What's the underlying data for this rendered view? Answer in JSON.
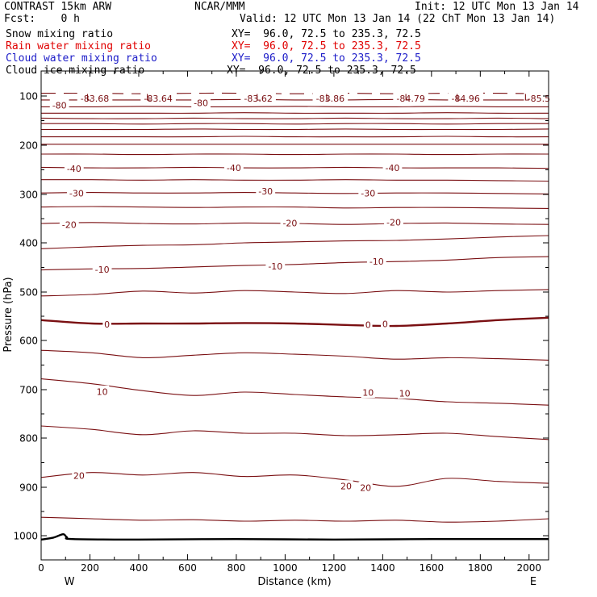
{
  "header": {
    "title": "CONTRAST 15km ARW",
    "center": "NCAR/MMM",
    "init": "Init: 12 UTC Mon 13 Jan 14",
    "fcst": "Fcst:    0 h",
    "valid": "Valid: 12 UTC Mon 13 Jan 14 (22 ChT Mon 13 Jan 14)"
  },
  "fields": [
    {
      "name": "Snow mixing ratio",
      "xy": "XY=  96.0, 72.5 to 235.3, 72.5",
      "color": "#000000"
    },
    {
      "name": "Rain water mixing ratio",
      "xy": "XY=  96.0, 72.5 to 235.3, 72.5",
      "color": "#e00000"
    },
    {
      "name": "Cloud water mixing ratio",
      "xy": "XY=  96.0, 72.5 to 235.3, 72.5",
      "color": "#1c1cc8"
    },
    {
      "name": "Cloud ice mixing ratio",
      "xy": "XY=  96.0, 72.5 to 235.3, 72.5",
      "color": "#000000"
    }
  ],
  "chart_data": {
    "type": "line",
    "xlabel": "Distance (km)",
    "ylabel": "Pressure (hPa)",
    "xlim": [
      0,
      2080
    ],
    "ylim": [
      1050,
      55
    ],
    "x_ticks": [
      0,
      200,
      400,
      600,
      800,
      1000,
      1200,
      1400,
      1600,
      1800,
      2000
    ],
    "y_ticks": [
      100,
      200,
      300,
      400,
      500,
      600,
      700,
      800,
      900,
      1000
    ],
    "x_end_labels": {
      "left": "W",
      "right": "E"
    },
    "contour_color": "#7a0f12",
    "ground_color": "#000000",
    "contours": [
      {
        "p": [
          95,
          95,
          96,
          95,
          95,
          96,
          95,
          96,
          95,
          95,
          96
        ],
        "dashed": true
      },
      {
        "p": [
          108,
          108,
          108,
          108,
          107,
          108,
          108,
          107,
          108,
          108,
          108
        ]
      },
      {
        "p": [
          122,
          122,
          121,
          122,
          122,
          121,
          122,
          122,
          121,
          122,
          122
        ]
      },
      {
        "p": [
          135,
          135,
          135,
          135,
          134,
          135,
          135,
          135,
          134,
          135,
          135
        ]
      },
      {
        "p": [
          145,
          146,
          146,
          145,
          146,
          146,
          145,
          146,
          146,
          145,
          146
        ]
      },
      {
        "p": [
          156,
          156,
          157,
          156,
          156,
          157,
          156,
          156,
          157,
          156,
          156
        ]
      },
      {
        "p": [
          168,
          168,
          168,
          167,
          168,
          168,
          167,
          168,
          168,
          168,
          167
        ]
      },
      {
        "p": [
          183,
          183,
          183,
          183,
          182,
          183,
          183,
          183,
          182,
          183,
          183
        ]
      },
      {
        "p": [
          198,
          198,
          198,
          198,
          198,
          198,
          198,
          198,
          198,
          198,
          198
        ]
      },
      {
        "p": [
          218,
          218,
          219,
          218,
          218,
          219,
          218,
          218,
          219,
          218,
          218
        ]
      },
      {
        "p": [
          245,
          246,
          246,
          245,
          246,
          246,
          245,
          246,
          246,
          246,
          247
        ]
      },
      {
        "p": [
          270,
          270,
          271,
          270,
          271,
          271,
          270,
          271,
          271,
          272,
          273
        ]
      },
      {
        "p": [
          297,
          296,
          297,
          297,
          296,
          297,
          298,
          297,
          297,
          298,
          299
        ]
      },
      {
        "p": [
          326,
          325,
          326,
          327,
          326,
          326,
          328,
          327,
          327,
          328,
          329
        ]
      },
      {
        "p": [
          360,
          358,
          360,
          361,
          359,
          360,
          362,
          360,
          359,
          361,
          362
        ]
      },
      {
        "p": [
          412,
          408,
          405,
          404,
          400,
          398,
          396,
          395,
          392,
          388,
          385
        ]
      },
      {
        "p": [
          455,
          453,
          452,
          449,
          446,
          444,
          440,
          438,
          435,
          430,
          428
        ]
      },
      {
        "p": [
          508,
          505,
          498,
          502,
          497,
          500,
          503,
          497,
          500,
          497,
          495
        ]
      },
      {
        "p": [
          558,
          565,
          565,
          565,
          564,
          565,
          568,
          570,
          565,
          558,
          553
        ],
        "bold": true
      },
      {
        "p": [
          620,
          625,
          635,
          630,
          625,
          628,
          632,
          638,
          635,
          637,
          640
        ]
      },
      {
        "p": [
          678,
          688,
          702,
          712,
          705,
          710,
          715,
          718,
          725,
          728,
          732
        ]
      },
      {
        "p": [
          775,
          782,
          793,
          785,
          790,
          790,
          795,
          793,
          790,
          797,
          803
        ]
      },
      {
        "p": [
          880,
          870,
          875,
          870,
          878,
          875,
          885,
          898,
          882,
          888,
          892
        ]
      },
      {
        "p": [
          962,
          965,
          968,
          967,
          970,
          968,
          970,
          968,
          972,
          970,
          965
        ]
      }
    ],
    "ground": {
      "x": [
        0,
        50,
        90,
        105,
        130,
        400,
        800,
        1200,
        1600,
        2000,
        2080
      ],
      "p": [
        1008,
        1004,
        997,
        1003,
        1007,
        1008,
        1007,
        1008,
        1007,
        1007,
        1007
      ]
    },
    "contour_labels": [
      {
        "text": "-80",
        "x": 75,
        "p": 118
      },
      {
        "text": "-80",
        "x": 655,
        "p": 113
      },
      {
        "text": "-40",
        "x": 135,
        "p": 247
      },
      {
        "text": "-40",
        "x": 790,
        "p": 245
      },
      {
        "text": "-40",
        "x": 1440,
        "p": 245
      },
      {
        "text": "-30",
        "x": 145,
        "p": 297
      },
      {
        "text": "-30",
        "x": 920,
        "p": 293
      },
      {
        "text": "-30",
        "x": 1340,
        "p": 297
      },
      {
        "text": "-20",
        "x": 115,
        "p": 362
      },
      {
        "text": "-20",
        "x": 1020,
        "p": 358
      },
      {
        "text": "-20",
        "x": 1445,
        "p": 357
      },
      {
        "text": "-10",
        "x": 250,
        "p": 453
      },
      {
        "text": "-10",
        "x": 960,
        "p": 447
      },
      {
        "text": "-10",
        "x": 1375,
        "p": 437
      },
      {
        "text": "0",
        "x": 270,
        "p": 566
      },
      {
        "text": "0",
        "x": 1340,
        "p": 567
      },
      {
        "text": "0",
        "x": 1410,
        "p": 565
      },
      {
        "text": "10",
        "x": 250,
        "p": 703
      },
      {
        "text": "10",
        "x": 1340,
        "p": 705
      },
      {
        "text": "10",
        "x": 1490,
        "p": 707
      },
      {
        "text": "20",
        "x": 155,
        "p": 875
      },
      {
        "text": "20",
        "x": 1250,
        "p": 897
      },
      {
        "text": "20",
        "x": 1330,
        "p": 900
      }
    ],
    "low_markers": [
      {
        "text": "L",
        "x": 195,
        "p": 88
      },
      {
        "text": "L",
        "x": 440,
        "p": 88
      },
      {
        "text": "L",
        "x": 890,
        "p": 88
      },
      {
        "text": "L",
        "x": 1175,
        "p": 88
      },
      {
        "text": "L",
        "x": 1500,
        "p": 88
      },
      {
        "text": "L",
        "x": 1710,
        "p": 88
      },
      {
        "text": "L",
        "x": 1990,
        "p": 88
      }
    ],
    "low_values": [
      {
        "text": "-83.68",
        "x": 220,
        "p": 104
      },
      {
        "text": "-83.64",
        "x": 480,
        "p": 104
      },
      {
        "text": "-83.62",
        "x": 890,
        "p": 104
      },
      {
        "text": "-83.86",
        "x": 1185,
        "p": 104
      },
      {
        "text": "-84.79",
        "x": 1515,
        "p": 104
      },
      {
        "text": "-84.96",
        "x": 1740,
        "p": 104
      },
      {
        "text": "-85.5",
        "x": 2040,
        "p": 104
      }
    ]
  }
}
